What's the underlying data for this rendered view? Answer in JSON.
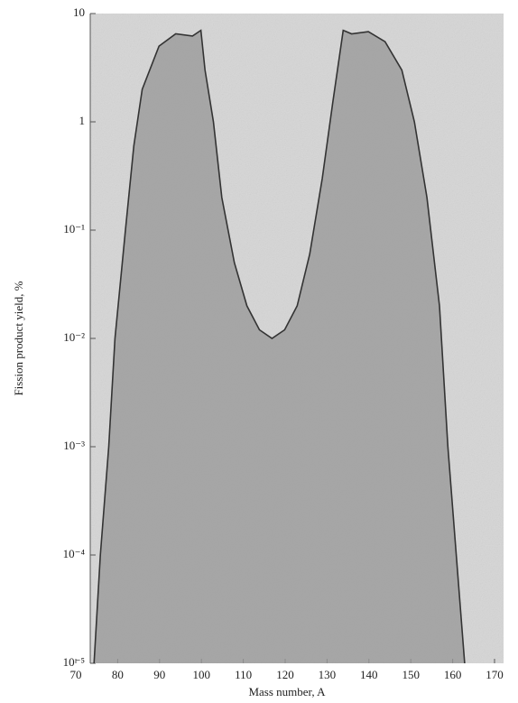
{
  "chart_data": {
    "type": "line",
    "log_y": true,
    "xlabel": "Mass number, A",
    "ylabel": "Fission product yield, %",
    "x": [
      73.5,
      75,
      77,
      78.5,
      81,
      83,
      85,
      89,
      93,
      97,
      99,
      100,
      102,
      104,
      107,
      110,
      113,
      116,
      119,
      122,
      125,
      128,
      130.5,
      133,
      135,
      139,
      143,
      147,
      150,
      153,
      156,
      158,
      160,
      162
    ],
    "series": [
      {
        "color": "#333333",
        "fill": "#9a9a9a",
        "values": [
          1e-05,
          0.0001,
          0.001,
          0.01,
          0.1,
          0.6,
          2,
          5,
          6.5,
          6.2,
          7,
          3,
          1,
          0.2,
          0.05,
          0.02,
          0.012,
          0.01,
          0.012,
          0.02,
          0.06,
          0.3,
          1.5,
          7,
          6.5,
          6.8,
          5.5,
          3,
          1,
          0.2,
          0.02,
          0.001,
          0.0001,
          1e-05
        ]
      }
    ],
    "xlim": [
      70,
      170
    ],
    "xticks": [
      70,
      80,
      90,
      100,
      110,
      120,
      130,
      140,
      150,
      160,
      170
    ],
    "ylim": [
      1e-05,
      10
    ],
    "yticks": [
      {
        "value": 1e-05,
        "label": "10⁻⁵"
      },
      {
        "value": 0.0001,
        "label": "10⁻⁴"
      },
      {
        "value": 0.001,
        "label": "10⁻³"
      },
      {
        "value": 0.01,
        "label": "10⁻²"
      },
      {
        "value": 0.1,
        "label": "10⁻¹"
      },
      1,
      10
    ],
    "background": "#d6d6d6"
  }
}
